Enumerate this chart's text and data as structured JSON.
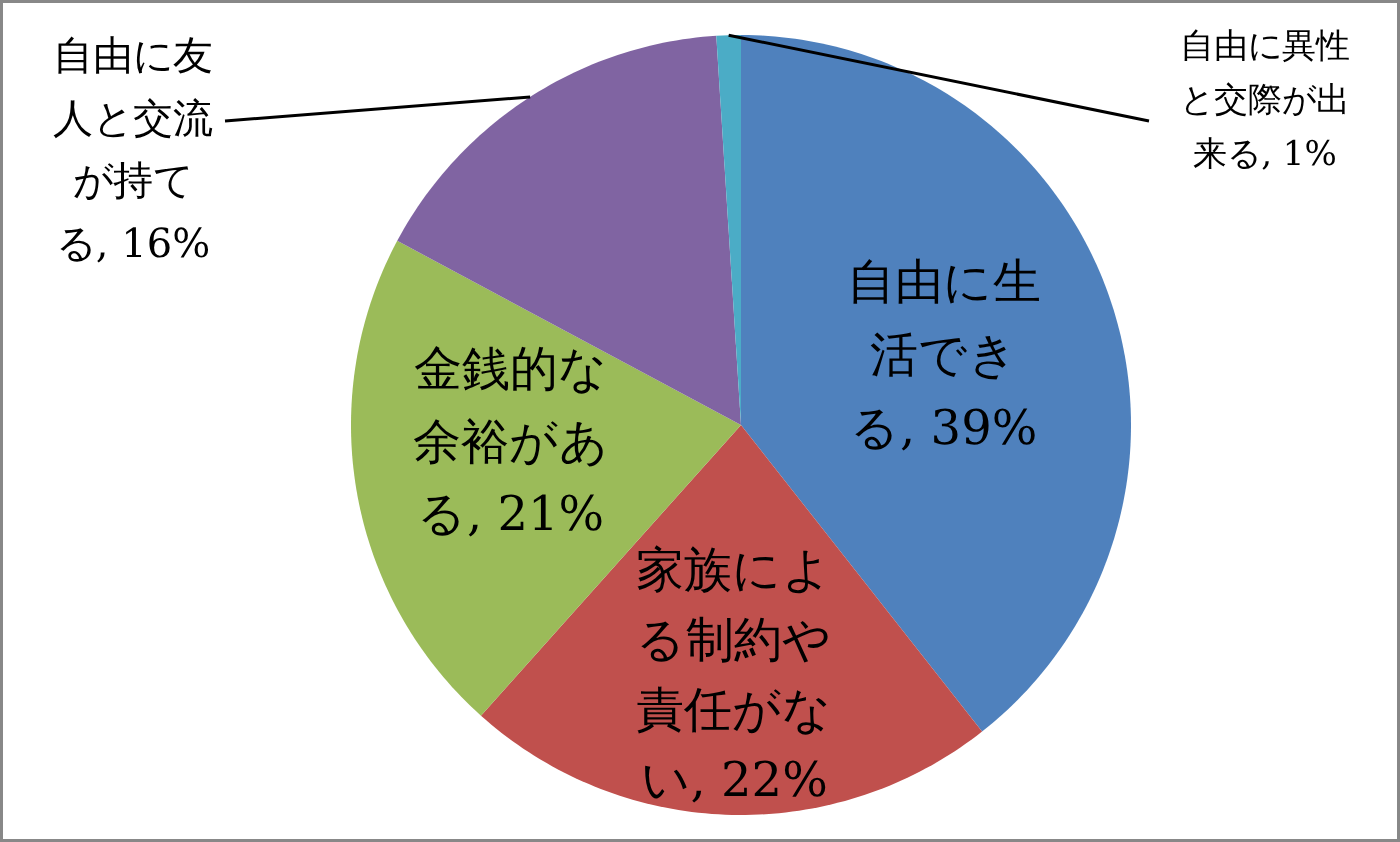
{
  "chart_data": {
    "type": "pie",
    "categories": [
      "自由に生活できる",
      "家族による制約や責任がない",
      "金銭的な余裕がある",
      "自由に友人と交流が持てる",
      "自由に異性と交際が出来る"
    ],
    "values": [
      39,
      22,
      21,
      16,
      1
    ],
    "colors": [
      "#4f81bd",
      "#c0504d",
      "#9bbb59",
      "#8064a2",
      "#4bacc6"
    ],
    "value_labels": [
      "39%",
      "22%",
      "21%",
      "16%",
      "1%"
    ]
  }
}
